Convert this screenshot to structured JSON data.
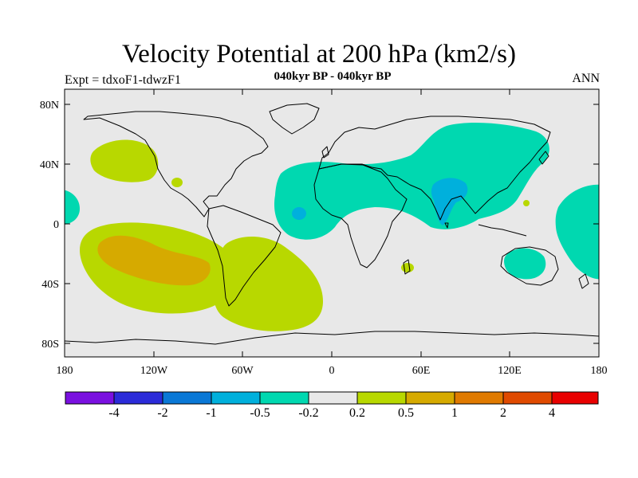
{
  "title": "Velocity Potential at 200 hPa (km2/s)",
  "subtitle": "040kyr BP - 040kyr BP",
  "experiment": "Expt = tdxoF1-tdwzF1",
  "season": "ANN",
  "colors": {
    "background": "#e8e8e8",
    "land_outline": "#000000"
  },
  "y_axis_labels": [
    "80N",
    "40N",
    "0",
    "40S",
    "80S"
  ],
  "x_axis_labels": [
    "180",
    "120W",
    "60W",
    "0",
    "60E",
    "120E",
    "180"
  ],
  "colorbar": {
    "colors": [
      "#7a10e0",
      "#2b2bd8",
      "#0a78d6",
      "#00b0dc",
      "#00d8b0",
      "#e8e8e8",
      "#b8d800",
      "#d6aa00",
      "#e07a00",
      "#e04a00",
      "#e80000"
    ],
    "labels": [
      "-4",
      "-2",
      "-1",
      "-0.5",
      "-0.2",
      "0.2",
      "0.5",
      "1",
      "2",
      "4"
    ]
  },
  "anomaly_regions": [
    {
      "name": "north-pacific-positive",
      "level": "0.2 to 0.5",
      "color": "#b8d800"
    },
    {
      "name": "south-pacific-positive",
      "level": "0.2 to 0.5",
      "color": "#b8d800"
    },
    {
      "name": "south-pacific-core",
      "level": "0.5 to 1",
      "color": "#d6aa00"
    },
    {
      "name": "south-america-positive",
      "level": "0.2 to 0.5",
      "color": "#b8d800"
    },
    {
      "name": "eurasia-negative",
      "level": "-0.5 to -0.2",
      "color": "#00d8b0"
    },
    {
      "name": "india-core-negative",
      "level": "-1 to -0.5",
      "color": "#00b0dc"
    },
    {
      "name": "west-pacific-negative",
      "level": "-0.5 to -0.2",
      "color": "#00d8b0"
    },
    {
      "name": "australia-negative",
      "level": "-0.5 to -0.2",
      "color": "#00d8b0"
    }
  ]
}
